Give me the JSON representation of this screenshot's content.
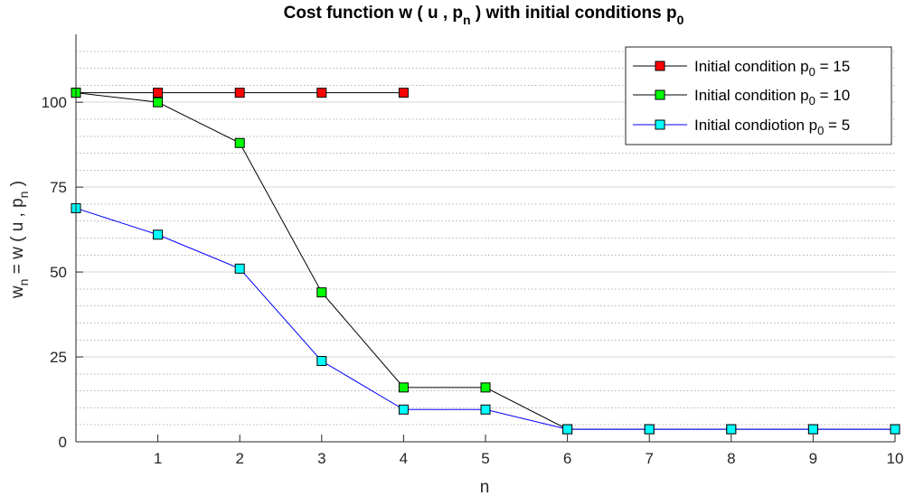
{
  "chart_data": {
    "type": "line",
    "title": {
      "main": "Cost function w ( u , p",
      "sub": "n",
      "mid": " ) with initial conditions p",
      "sub2": "0"
    },
    "xlabel": "n",
    "ylabel": {
      "a": "w",
      "a_sub": "n",
      "b": " = w ( u , p",
      "b_sub": "n",
      "c": " )"
    },
    "xlim": [
      0,
      10
    ],
    "ylim": [
      0,
      120
    ],
    "x_ticks": [
      1,
      2,
      3,
      4,
      5,
      6,
      7,
      8,
      9,
      10
    ],
    "y_ticks": [
      0,
      25,
      50,
      75,
      100
    ],
    "grid": {
      "major": true,
      "minor_y": true
    },
    "legend_position": "top-right",
    "series": [
      {
        "legend": {
          "pre": "Initial condition p",
          "sub": "0",
          "post": " = 15"
        },
        "line_color": "#000000",
        "marker_color": "#ff0000",
        "x": [
          0,
          1,
          2,
          3,
          4
        ],
        "y": [
          102.8,
          102.8,
          102.8,
          102.8,
          102.8
        ]
      },
      {
        "legend": {
          "pre": "Initial condition p",
          "sub": "0",
          "post": " = 10"
        },
        "line_color": "#000000",
        "marker_color": "#00ff00",
        "x": [
          0,
          1,
          2,
          3,
          4,
          5,
          6,
          7,
          8,
          9,
          10
        ],
        "y": [
          102.8,
          100,
          88,
          44,
          16,
          16,
          3.7,
          3.7,
          3.7,
          3.7,
          3.7
        ]
      },
      {
        "legend": {
          "pre": "Initial condiotion p",
          "sub": "0",
          "post": " = 5"
        },
        "line_color": "#0000ff",
        "marker_color": "#00ffff",
        "x": [
          0,
          1,
          2,
          3,
          4,
          5,
          6,
          7,
          8,
          9,
          10
        ],
        "y": [
          68.8,
          61,
          51,
          23.8,
          9.5,
          9.5,
          3.7,
          3.7,
          3.7,
          3.7,
          3.7
        ]
      }
    ]
  }
}
